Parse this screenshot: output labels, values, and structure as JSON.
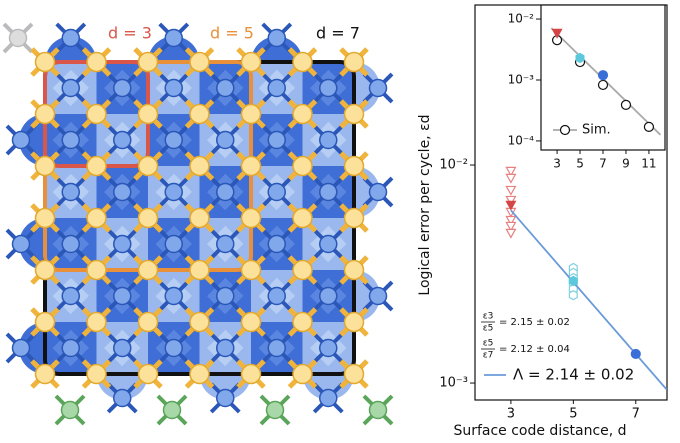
{
  "diagram": {
    "labels": [
      {
        "text": "d = 3",
        "color": "#d9574a"
      },
      {
        "text": "d = 5",
        "color": "#e8903a"
      },
      {
        "text": "d = 7",
        "color": "#111111"
      }
    ]
  },
  "chart_data": [
    {
      "type": "scatter",
      "yscale": "log",
      "x_label": "Surface code distance, d",
      "y_label": "Logical error per cycle, εd",
      "xlim": [
        1.85,
        8.0
      ],
      "ylim": [
        0.000836,
        0.0542
      ],
      "xticks": [
        3,
        5,
        7
      ],
      "yticks": [
        {
          "value": 0.01,
          "label": "10⁻²"
        },
        {
          "value": 0.001,
          "label": "10⁻³"
        }
      ],
      "series": [
        {
          "x": [
            3,
            3,
            3,
            3,
            3,
            3,
            3,
            3
          ],
          "values": [
            0.00939,
            0.00872,
            0.00768,
            0.00691,
            0.00609,
            0.00559,
            0.00525,
            0.00488
          ],
          "color": "#e88080",
          "marker": "triangle-down",
          "filled": false
        },
        {
          "x": [
            5,
            5,
            5,
            5,
            5,
            5
          ],
          "values": [
            0.00337,
            0.0032,
            0.00303,
            0.00288,
            0.0027,
            0.00253
          ],
          "color": "#7fd0e0",
          "marker": "hexagon",
          "filled": false
        },
        {
          "name": "Λ = 2.14 ± 0.02",
          "x": [
            3,
            8
          ],
          "values": [
            0.0062,
            0.00093
          ],
          "color": "#6a9bd8",
          "style": "line"
        },
        {
          "x": [
            3,
            5,
            7
          ],
          "values": [
            0.00656,
            0.00294,
            0.00136
          ],
          "colors": [
            "#d64545",
            "#5bc8dc",
            "#3a6fd8"
          ],
          "markers": [
            "triangle-down",
            "hexagon",
            "circle"
          ],
          "filled": true
        }
      ],
      "annotations": [
        {
          "numerator": "ε3",
          "denominator": "ε5",
          "text": "= 2.15 ± 0.02"
        },
        {
          "numerator": "ε5",
          "denominator": "ε7",
          "text": "= 2.12 ± 0.04"
        }
      ],
      "legend": "lower-left"
    },
    {
      "type": "scatter",
      "yscale": "log",
      "xlim": [
        1.6,
        12.4
      ],
      "ylim": [
        7.1e-05,
        0.017
      ],
      "xticks": [
        3,
        5,
        7,
        9,
        11
      ],
      "yticks": [
        {
          "value": 0.01,
          "label": "10⁻²"
        },
        {
          "value": 0.001,
          "label": "10⁻³"
        },
        {
          "value": 0.0001,
          "label": "10⁻⁴"
        }
      ],
      "series": [
        {
          "x": [
            2.5,
            12
          ],
          "values": [
            0.0071,
            0.000126
          ],
          "color": "#aaaaaa",
          "style": "line"
        },
        {
          "name": "Sim.",
          "x": [
            3,
            5,
            7,
            9,
            11
          ],
          "values": [
            0.0045,
            0.00197,
            0.00083,
            0.00039,
            0.00017
          ],
          "color": "#111111",
          "marker": "circle",
          "filled": false
        },
        {
          "x": [
            3,
            5,
            7
          ],
          "values": [
            0.0059,
            0.0023,
            0.0012
          ],
          "colors": [
            "#d64545",
            "#5bc8dc",
            "#3a6fd8"
          ],
          "markers": [
            "triangle-down",
            "hexagon",
            "circle"
          ],
          "filled": true
        }
      ],
      "legend": "lower-left"
    }
  ]
}
